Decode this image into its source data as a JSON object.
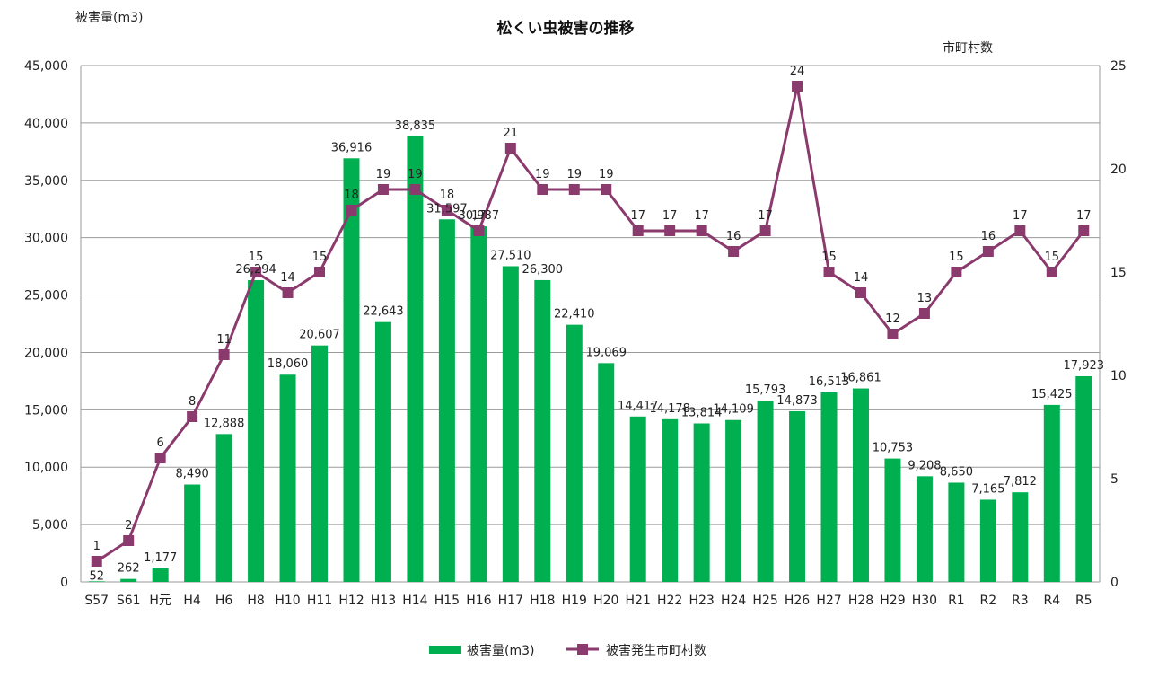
{
  "chart_data": {
    "type": "bar",
    "title": "松くい虫被害の推移",
    "ylabel": "被害量(m3)",
    "y2label": "市町村数",
    "ylim": [
      0,
      45000
    ],
    "y2lim": [
      0,
      25
    ],
    "yticks": [
      "0",
      "5,000",
      "10,000",
      "15,000",
      "20,000",
      "25,000",
      "30,000",
      "35,000",
      "40,000",
      "45,000"
    ],
    "y2ticks": [
      "0",
      "5",
      "10",
      "15",
      "20",
      "25"
    ],
    "grid": true,
    "legend_position": "bottom",
    "categories": [
      "S57",
      "S61",
      "H元",
      "H4",
      "H6",
      "H8",
      "H10",
      "H11",
      "H12",
      "H13",
      "H14",
      "H15",
      "H16",
      "H17",
      "H18",
      "H19",
      "H20",
      "H21",
      "H22",
      "H23",
      "H24",
      "H25",
      "H26",
      "H27",
      "H28",
      "H29",
      "H30",
      "R1",
      "R2",
      "R3",
      "R4",
      "R5"
    ],
    "series": [
      {
        "name": "被害量(m3)",
        "type": "bar",
        "axis": "left",
        "color": "#00b050",
        "values": [
          52,
          262,
          1177,
          8490,
          12888,
          26294,
          18060,
          20607,
          36916,
          22643,
          38835,
          31597,
          30987,
          27510,
          26300,
          22410,
          19069,
          14417,
          14178,
          13814,
          14109,
          15793,
          14873,
          16513,
          16861,
          10753,
          9208,
          8650,
          7165,
          7812,
          15425,
          17923
        ],
        "labels": [
          "52",
          "262",
          "1,177",
          "8,490",
          "12,888",
          "26,294",
          "18,060",
          "20,607",
          "36,916",
          "22,643",
          "38,835",
          "31,597",
          "30,987",
          "27,510",
          "26,300",
          "22,410",
          "19,069",
          "14,417",
          "14,178",
          "13,814",
          "14,109",
          "15,793",
          "14,873",
          "16,513",
          "16,861",
          "10,753",
          "9,208",
          "8,650",
          "7,165",
          "7,812",
          "15,425",
          "17,923"
        ]
      },
      {
        "name": "被害発生市町村数",
        "type": "line",
        "axis": "right",
        "color": "#8b3a6e",
        "values": [
          1,
          2,
          6,
          8,
          11,
          15,
          14,
          15,
          18,
          19,
          19,
          18,
          17,
          21,
          19,
          19,
          19,
          17,
          17,
          17,
          16,
          17,
          24,
          15,
          14,
          12,
          13,
          15,
          16,
          17,
          15,
          17
        ],
        "labels": [
          "1",
          "2",
          "6",
          "8",
          "11",
          "15",
          "14",
          "15",
          "18",
          "19",
          "19",
          "18",
          "17",
          "21",
          "19",
          "19",
          "19",
          "17",
          "17",
          "17",
          "16",
          "17",
          "24",
          "15",
          "14",
          "12",
          "13",
          "15",
          "16",
          "17",
          "15",
          "17"
        ]
      }
    ]
  }
}
